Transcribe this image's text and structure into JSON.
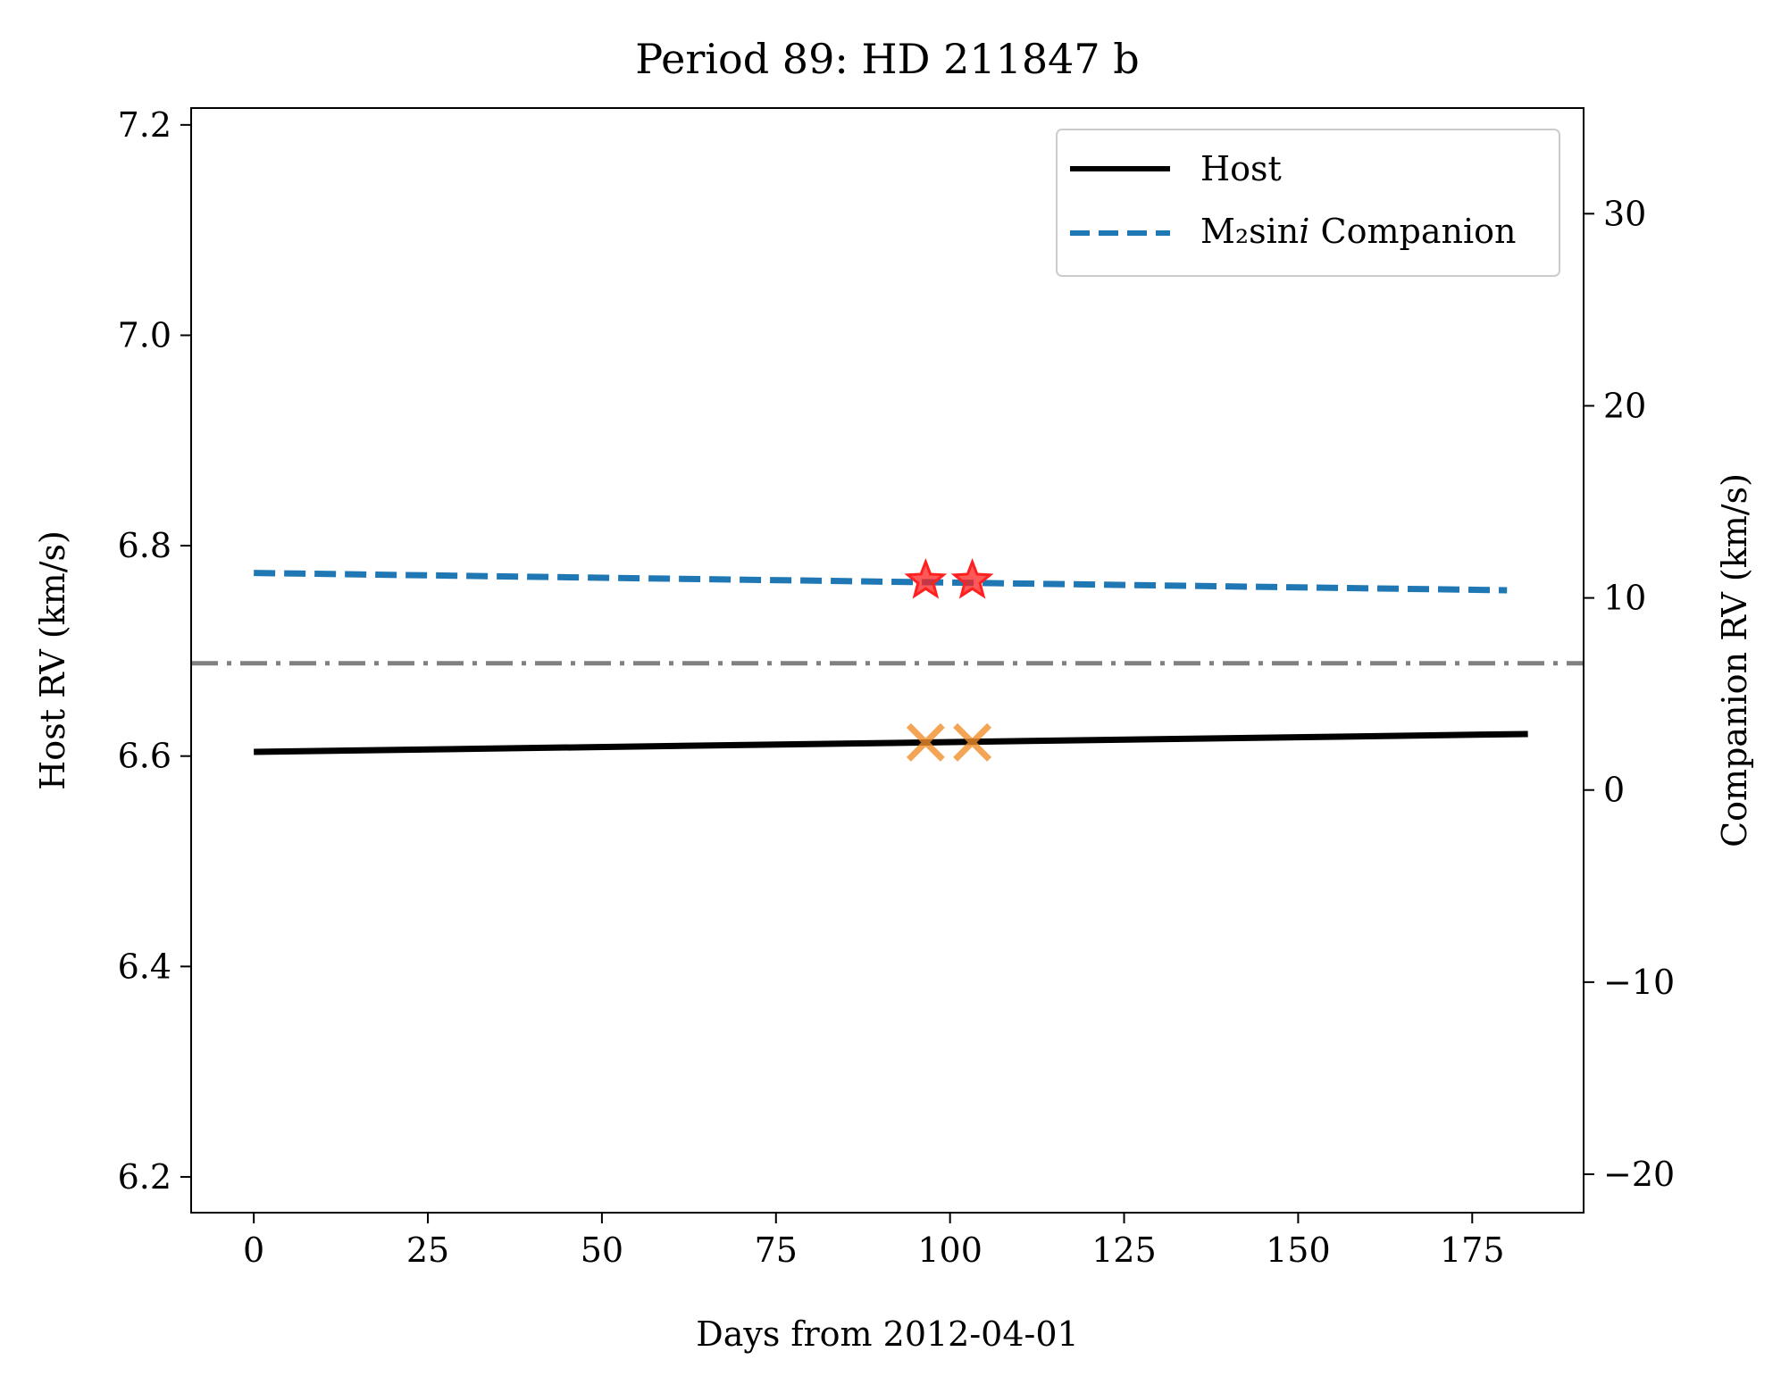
{
  "chart_data": {
    "type": "line",
    "title": "Period 89: HD 211847 b",
    "xlabel": "Days from 2012-04-01",
    "ylabel_left": "Host RV (km/s)",
    "ylabel_right": "Companion RV (km/s)",
    "xlim": [
      -9,
      191
    ],
    "ylim_left": [
      6.166,
      7.216
    ],
    "ylim_right": [
      -22,
      35.5
    ],
    "x_ticks": [
      "0",
      "25",
      "50",
      "75",
      "100",
      "125",
      "150",
      "175"
    ],
    "y_left_ticks": [
      "6.2",
      "6.4",
      "6.6",
      "6.8",
      "7.0",
      "7.2"
    ],
    "y_right_ticks": [
      "−20",
      "−10",
      "0",
      "10",
      "20",
      "30"
    ],
    "grid": false,
    "legend_position": "top-right",
    "series": [
      {
        "name": "Host",
        "axis": "left",
        "style": "solid",
        "color": "#000000",
        "x": [
          0,
          183
        ],
        "y": [
          6.604,
          6.621
        ]
      },
      {
        "name": "M₂sin",
        "name_italic": "i",
        "name_suffix": " Companion",
        "axis": "right",
        "style": "dashed",
        "color": "#1f77b4",
        "x": [
          0,
          180
        ],
        "y": [
          11.3,
          10.4
        ]
      }
    ],
    "reference_line": {
      "axis": "right",
      "y": 6.6,
      "style": "dashdot",
      "color": "#808080"
    },
    "markers": {
      "host_observations": {
        "symbol": "x",
        "color": "#f28e2b",
        "axis": "left",
        "x": [
          96.5,
          103.2
        ],
        "y": [
          6.613,
          6.613
        ]
      },
      "companion_observations": {
        "symbol": "star",
        "color": "#ff2020",
        "axis": "right",
        "x": [
          96.5,
          103.2
        ],
        "y": [
          10.9,
          10.9
        ]
      }
    }
  }
}
